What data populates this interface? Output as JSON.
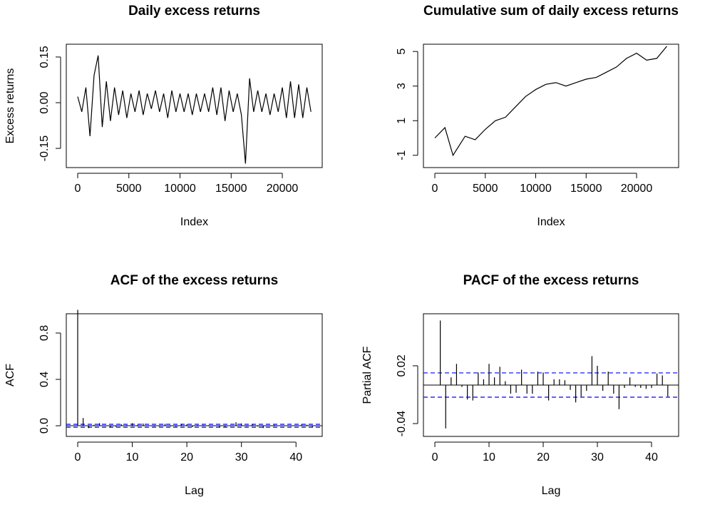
{
  "chart_data": [
    {
      "type": "line",
      "title": "Daily excess returns",
      "x_label": "Index",
      "y_label": "Excess returns",
      "color": "#000000",
      "x": [
        0,
        400,
        800,
        1200,
        1600,
        2000,
        2400,
        2800,
        3200,
        3600,
        4000,
        4400,
        4800,
        5200,
        5600,
        6000,
        6400,
        6800,
        7200,
        7600,
        8000,
        8400,
        8800,
        9200,
        9600,
        10000,
        10400,
        10800,
        11200,
        11600,
        12000,
        12400,
        12800,
        13200,
        13600,
        14000,
        14400,
        14800,
        15200,
        15600,
        16000,
        16400,
        16800,
        17200,
        17600,
        18000,
        18400,
        18800,
        19200,
        19600,
        20000,
        20400,
        20800,
        21200,
        21600,
        22000,
        22400,
        22800
      ],
      "values": [
        0.02,
        -0.03,
        0.05,
        -0.11,
        0.09,
        0.155,
        -0.08,
        0.07,
        -0.06,
        0.05,
        -0.04,
        0.04,
        -0.05,
        0.03,
        -0.03,
        0.04,
        -0.04,
        0.03,
        -0.02,
        0.04,
        -0.03,
        0.03,
        -0.05,
        0.04,
        -0.03,
        0.03,
        -0.03,
        0.03,
        -0.04,
        0.03,
        -0.03,
        0.03,
        -0.03,
        0.05,
        -0.04,
        0.05,
        -0.06,
        0.04,
        -0.03,
        0.03,
        -0.04,
        -0.2,
        0.08,
        -0.03,
        0.04,
        -0.03,
        0.03,
        -0.04,
        0.03,
        -0.03,
        0.05,
        -0.05,
        0.07,
        -0.05,
        0.06,
        -0.05,
        0.05,
        -0.03
      ],
      "xlim": [
        -1115,
        23900
      ],
      "xticks": [
        0,
        5000,
        10000,
        15000,
        20000
      ],
      "ylim": [
        -0.213,
        0.192
      ],
      "yticks": [
        -0.15,
        {
          "value": 0,
          "label": "0.00"
        },
        0.15
      ]
    },
    {
      "type": "line",
      "title": "Cumulative sum of daily excess returns",
      "x_label": "Index",
      "y_label": null,
      "color": "#000000",
      "x": [
        0,
        1000,
        1800,
        3000,
        4000,
        5000,
        6000,
        7000,
        8000,
        9000,
        10000,
        11000,
        12000,
        13000,
        14000,
        15000,
        16000,
        17000,
        18000,
        19000,
        20000,
        21000,
        22000,
        23000
      ],
      "values": [
        0,
        0.6,
        -1.0,
        0.1,
        -0.1,
        0.5,
        1.0,
        1.2,
        1.8,
        2.4,
        2.8,
        3.1,
        3.2,
        3.0,
        3.2,
        3.4,
        3.5,
        3.8,
        4.1,
        4.6,
        4.9,
        4.5,
        4.6,
        5.3
      ],
      "xlim": [
        -1131,
        24170
      ],
      "xticks": [
        0,
        5000,
        10000,
        15000,
        20000
      ],
      "ylim": [
        -1.71,
        5.42
      ],
      "yticks": [
        -1,
        1,
        3,
        5
      ]
    },
    {
      "type": "bar",
      "title": "ACF of the excess returns",
      "x_label": "Lag",
      "y_label": "ACF",
      "color": "#000000",
      "confidence_color": "#0000ff",
      "confidence_limit": 0.0126,
      "x": [
        0,
        1,
        2,
        3,
        4,
        5,
        6,
        7,
        8,
        9,
        10,
        11,
        12,
        13,
        14,
        15,
        16,
        17,
        18,
        19,
        20,
        21,
        22,
        23,
        24,
        25,
        26,
        27,
        28,
        29,
        30,
        31,
        32,
        33,
        34,
        35,
        36,
        37,
        38,
        39,
        40,
        41,
        42,
        43,
        44
      ],
      "values": [
        1,
        0.067,
        -0.02,
        0.008,
        0.022,
        -0.002,
        -0.012,
        -0.01,
        0.013,
        0.006,
        0.022,
        0.008,
        0.019,
        0.004,
        -0.006,
        -0.005,
        0.016,
        -0.006,
        -0.007,
        0.014,
        0.013,
        -0.012,
        0.006,
        0.006,
        0.005,
        -0.004,
        -0.014,
        -0.01,
        -0.004,
        0.03,
        0.02,
        -0.005,
        0.013,
        -0.007,
        -0.02,
        -0.002,
        0.007,
        -0.002,
        -0.003,
        -0.004,
        -0.003,
        0.011,
        0.009,
        -0.01,
        0.001
      ],
      "xlim": [
        -2.09,
        44.8
      ],
      "xticks": [
        0,
        10,
        20,
        30,
        40
      ],
      "ylim": [
        -0.092,
        0.966
      ],
      "yticks": [
        {
          "value": 0,
          "label": "0.0"
        },
        0.4,
        0.8
      ]
    },
    {
      "type": "bar",
      "title": "PACF of the excess returns",
      "x_label": "Lag",
      "y_label": "Partial ACF",
      "color": "#000000",
      "confidence_color": "#0000ff",
      "confidence_limit": 0.0126,
      "x": [
        1,
        2,
        3,
        4,
        5,
        6,
        7,
        8,
        9,
        10,
        11,
        12,
        13,
        14,
        15,
        16,
        17,
        18,
        19,
        20,
        21,
        22,
        23,
        24,
        25,
        26,
        27,
        28,
        29,
        30,
        31,
        32,
        33,
        34,
        35,
        36,
        37,
        38,
        39,
        40,
        41,
        42,
        43,
        44
      ],
      "values": [
        0.067,
        -0.045,
        0.008,
        0.022,
        -0.002,
        -0.015,
        -0.016,
        0.013,
        0.006,
        0.022,
        0.008,
        0.019,
        0.004,
        -0.009,
        -0.008,
        0.016,
        -0.009,
        -0.009,
        0.014,
        0.013,
        -0.016,
        0.006,
        0.006,
        0.005,
        -0.005,
        -0.018,
        -0.012,
        -0.006,
        0.03,
        0.02,
        -0.006,
        0.014,
        -0.009,
        -0.025,
        -0.003,
        0.008,
        -0.002,
        -0.003,
        -0.004,
        -0.003,
        0.012,
        0.01,
        -0.012,
        0
      ],
      "xlim": [
        -2.11,
        45.0
      ],
      "xticks": [
        0,
        10,
        20,
        30,
        40
      ],
      "ylim": [
        -0.0533,
        0.074
      ],
      "yticks": [
        -0.04,
        0.02
      ]
    }
  ]
}
